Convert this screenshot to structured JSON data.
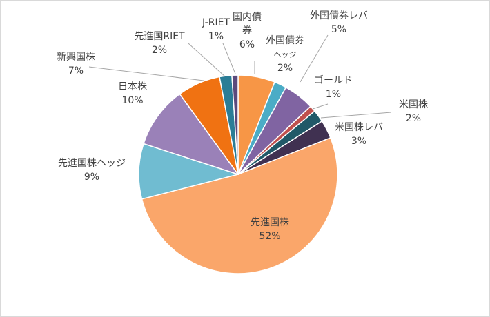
{
  "chart_data": {
    "type": "pie",
    "title": "",
    "legend": "none",
    "categories": [
      "国内債券",
      "外国債券ヘッジ",
      "外国債券レバ",
      "ゴールド",
      "米国株",
      "米国株レバ",
      "先進国株",
      "先進国株ヘッジ",
      "日本株",
      "新興国株",
      "先進国RIET",
      "J-RIET"
    ],
    "values": [
      6,
      2,
      5,
      1,
      2,
      3,
      52,
      9,
      10,
      7,
      2,
      1
    ],
    "percent_labels": [
      "6%",
      "2%",
      "5%",
      "1%",
      "2%",
      "3%",
      "52%",
      "9%",
      "10%",
      "7%",
      "2%",
      "1%"
    ],
    "colors": [
      "#F79646",
      "#4BACC6",
      "#8064A2",
      "#C0504D",
      "#215968",
      "#403151",
      "#FAA66A",
      "#70BCD1",
      "#9A81B8",
      "#F07212",
      "#2B7D96",
      "#5B4A7C"
    ],
    "label_text": [
      [
        "国内債",
        "券"
      ],
      [
        "外国債券",
        "ヘッジ"
      ],
      [
        "外国債券レバ"
      ],
      [
        "ゴールド"
      ],
      [
        "米国株"
      ],
      [
        "米国株レバ"
      ],
      [
        "先進国株"
      ],
      [
        "先進国株ヘッジ"
      ],
      [
        "日本株"
      ],
      [
        "新興国株"
      ],
      [
        "先進国RIET"
      ],
      [
        "J-RIET"
      ]
    ]
  }
}
